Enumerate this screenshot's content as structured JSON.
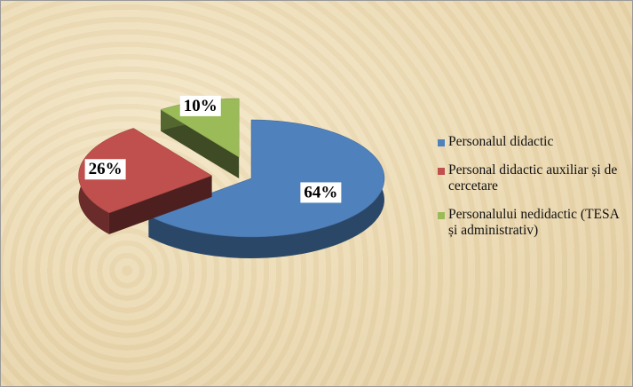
{
  "chart_data": {
    "type": "pie",
    "categories": [
      "Personalul didactic",
      "Personal didactic auxiliar  și de cercetare",
      "Personalului nedidactic (TESA și administrativ)"
    ],
    "values": [
      64,
      26,
      10
    ],
    "value_labels": [
      "64%",
      "26%",
      "10%"
    ],
    "colors": [
      "#4f81bd",
      "#c0504d",
      "#9bbb59"
    ],
    "legend": "right"
  }
}
